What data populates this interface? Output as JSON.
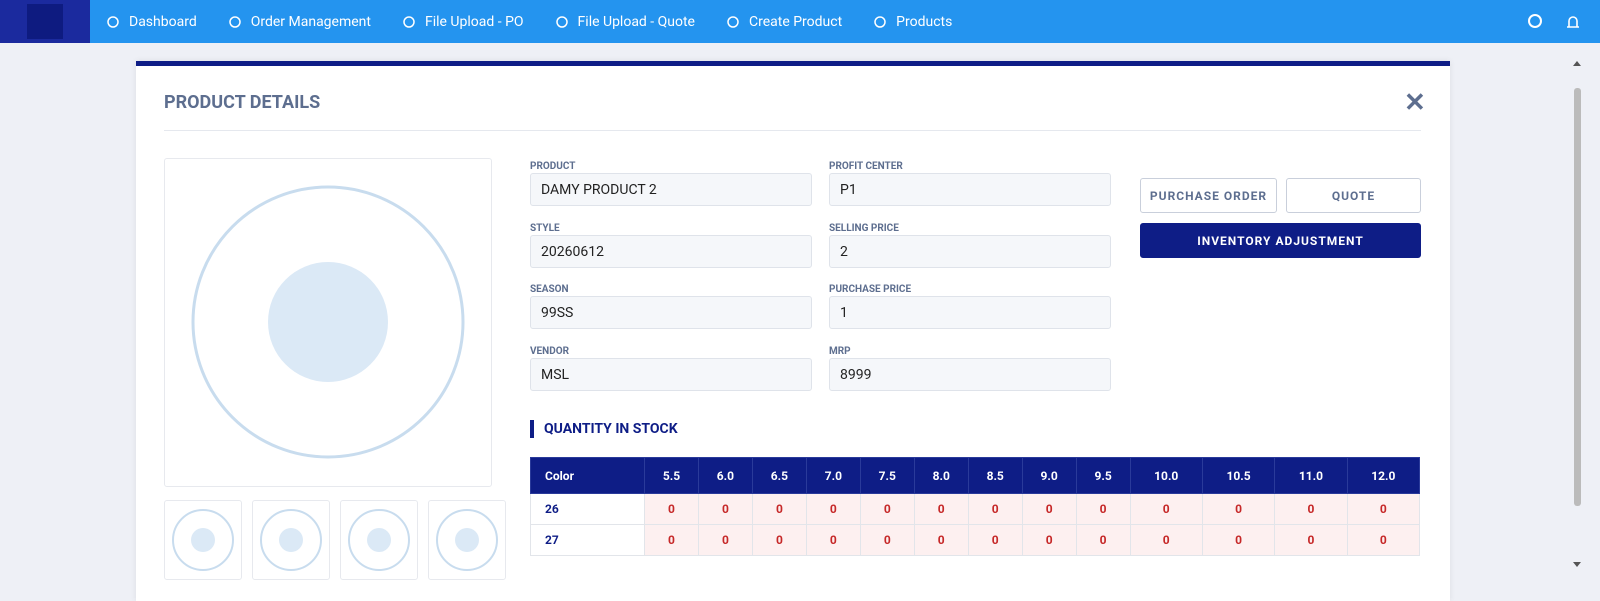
{
  "nav": {
    "items": [
      "Dashboard",
      "Order Management",
      "File Upload - PO",
      "File Upload - Quote",
      "Create Product",
      "Products"
    ]
  },
  "modal": {
    "title": "PRODUCT DETAILS",
    "fields_left": [
      {
        "label": "PRODUCT",
        "value": "DAMY PRODUCT 2"
      },
      {
        "label": "STYLE",
        "value": "20260612"
      },
      {
        "label": "SEASON",
        "value": "99SS"
      },
      {
        "label": "VENDOR",
        "value": "MSL"
      }
    ],
    "fields_right": [
      {
        "label": "PROFIT CENTER",
        "value": "P1"
      },
      {
        "label": "SELLING PRICE",
        "value": "2"
      },
      {
        "label": "PURCHASE PRICE",
        "value": "1"
      },
      {
        "label": "MRP",
        "value": "8999"
      }
    ],
    "buttons": [
      "PURCHASE ORDER",
      "QUOTE",
      "INVENTORY ADJUSTMENT"
    ],
    "stock": {
      "title": "QUANTITY IN STOCK",
      "header": [
        "Color",
        "5.5",
        "6.0",
        "6.5",
        "7.0",
        "7.5",
        "8.0",
        "8.5",
        "9.0",
        "9.5",
        "10.0",
        "10.5",
        "11.0",
        "12.0"
      ],
      "rows": [
        [
          "26",
          0,
          0,
          0,
          0,
          0,
          0,
          0,
          0,
          0,
          0,
          0,
          0,
          0
        ],
        [
          "27",
          0,
          0,
          0,
          0,
          0,
          0,
          0,
          0,
          0,
          0,
          0,
          0,
          0
        ]
      ]
    }
  }
}
